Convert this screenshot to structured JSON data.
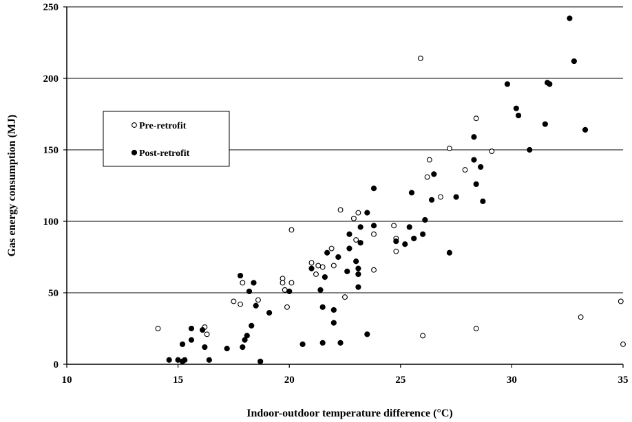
{
  "chart_data": {
    "type": "scatter",
    "xlabel": "Indoor-outdoor temperature difference (°C)",
    "ylabel": "Gas energy consumption (MJ)",
    "xlim": [
      10,
      35
    ],
    "ylim": [
      0,
      250
    ],
    "x_ticks": [
      10,
      15,
      20,
      25,
      30,
      35
    ],
    "y_ticks": [
      0,
      50,
      100,
      150,
      200,
      250
    ],
    "grid": "horizontal",
    "legend_position": "left",
    "series": [
      {
        "name": "Pre-retrofit",
        "marker": "open-circle",
        "color": "#000000",
        "points": [
          [
            14.1,
            25
          ],
          [
            16.2,
            26
          ],
          [
            16.3,
            21
          ],
          [
            17.5,
            44
          ],
          [
            17.8,
            42
          ],
          [
            17.9,
            57
          ],
          [
            18.6,
            45
          ],
          [
            19.7,
            60
          ],
          [
            19.7,
            57
          ],
          [
            19.8,
            52
          ],
          [
            19.9,
            40
          ],
          [
            20.1,
            57
          ],
          [
            20.1,
            94
          ],
          [
            21.0,
            71
          ],
          [
            21.2,
            63
          ],
          [
            21.3,
            69
          ],
          [
            21.5,
            68
          ],
          [
            21.9,
            81
          ],
          [
            22.0,
            69
          ],
          [
            22.3,
            108
          ],
          [
            22.5,
            47
          ],
          [
            22.9,
            102
          ],
          [
            23.0,
            87
          ],
          [
            23.1,
            106
          ],
          [
            23.8,
            66
          ],
          [
            23.8,
            91
          ],
          [
            24.7,
            97
          ],
          [
            24.8,
            88
          ],
          [
            24.8,
            79
          ],
          [
            25.9,
            214
          ],
          [
            26.0,
            20
          ],
          [
            26.2,
            131
          ],
          [
            26.3,
            143
          ],
          [
            26.8,
            117
          ],
          [
            27.2,
            151
          ],
          [
            27.9,
            136
          ],
          [
            28.4,
            172
          ],
          [
            28.4,
            25
          ],
          [
            29.1,
            149
          ],
          [
            33.1,
            33
          ],
          [
            34.9,
            44
          ],
          [
            35.0,
            14
          ]
        ]
      },
      {
        "name": "Post-retrofit",
        "marker": "filled-circle",
        "color": "#000000",
        "points": [
          [
            14.6,
            3
          ],
          [
            15.0,
            3
          ],
          [
            15.2,
            2
          ],
          [
            15.3,
            3
          ],
          [
            15.2,
            14
          ],
          [
            15.6,
            25
          ],
          [
            15.6,
            17
          ],
          [
            16.1,
            24
          ],
          [
            16.2,
            12
          ],
          [
            16.4,
            3
          ],
          [
            17.2,
            11
          ],
          [
            17.8,
            62
          ],
          [
            17.9,
            12
          ],
          [
            18.0,
            17
          ],
          [
            18.1,
            20
          ],
          [
            18.2,
            51
          ],
          [
            18.3,
            27
          ],
          [
            18.4,
            57
          ],
          [
            18.5,
            41
          ],
          [
            18.7,
            2
          ],
          [
            19.1,
            36
          ],
          [
            20.0,
            51
          ],
          [
            20.6,
            14
          ],
          [
            21.0,
            67
          ],
          [
            21.4,
            52
          ],
          [
            21.5,
            40
          ],
          [
            21.5,
            15
          ],
          [
            21.6,
            61
          ],
          [
            21.7,
            78
          ],
          [
            22.0,
            29
          ],
          [
            22.0,
            38
          ],
          [
            22.2,
            75
          ],
          [
            22.3,
            15
          ],
          [
            22.6,
            65
          ],
          [
            22.7,
            81
          ],
          [
            22.7,
            91
          ],
          [
            23.0,
            72
          ],
          [
            23.1,
            67
          ],
          [
            23.1,
            63
          ],
          [
            23.1,
            54
          ],
          [
            23.2,
            85
          ],
          [
            23.2,
            96
          ],
          [
            23.5,
            106
          ],
          [
            23.5,
            21
          ],
          [
            23.8,
            123
          ],
          [
            23.8,
            97
          ],
          [
            24.8,
            86
          ],
          [
            25.2,
            84
          ],
          [
            25.4,
            96
          ],
          [
            25.5,
            120
          ],
          [
            25.6,
            88
          ],
          [
            26.0,
            91
          ],
          [
            26.1,
            101
          ],
          [
            26.4,
            115
          ],
          [
            26.5,
            133
          ],
          [
            27.2,
            78
          ],
          [
            27.5,
            117
          ],
          [
            28.3,
            159
          ],
          [
            28.3,
            143
          ],
          [
            28.4,
            126
          ],
          [
            28.6,
            138
          ],
          [
            28.7,
            114
          ],
          [
            29.8,
            196
          ],
          [
            30.2,
            179
          ],
          [
            30.3,
            174
          ],
          [
            30.8,
            150
          ],
          [
            31.5,
            168
          ],
          [
            31.6,
            197
          ],
          [
            31.7,
            196
          ],
          [
            32.6,
            242
          ],
          [
            32.8,
            212
          ],
          [
            33.3,
            164
          ]
        ]
      }
    ]
  }
}
